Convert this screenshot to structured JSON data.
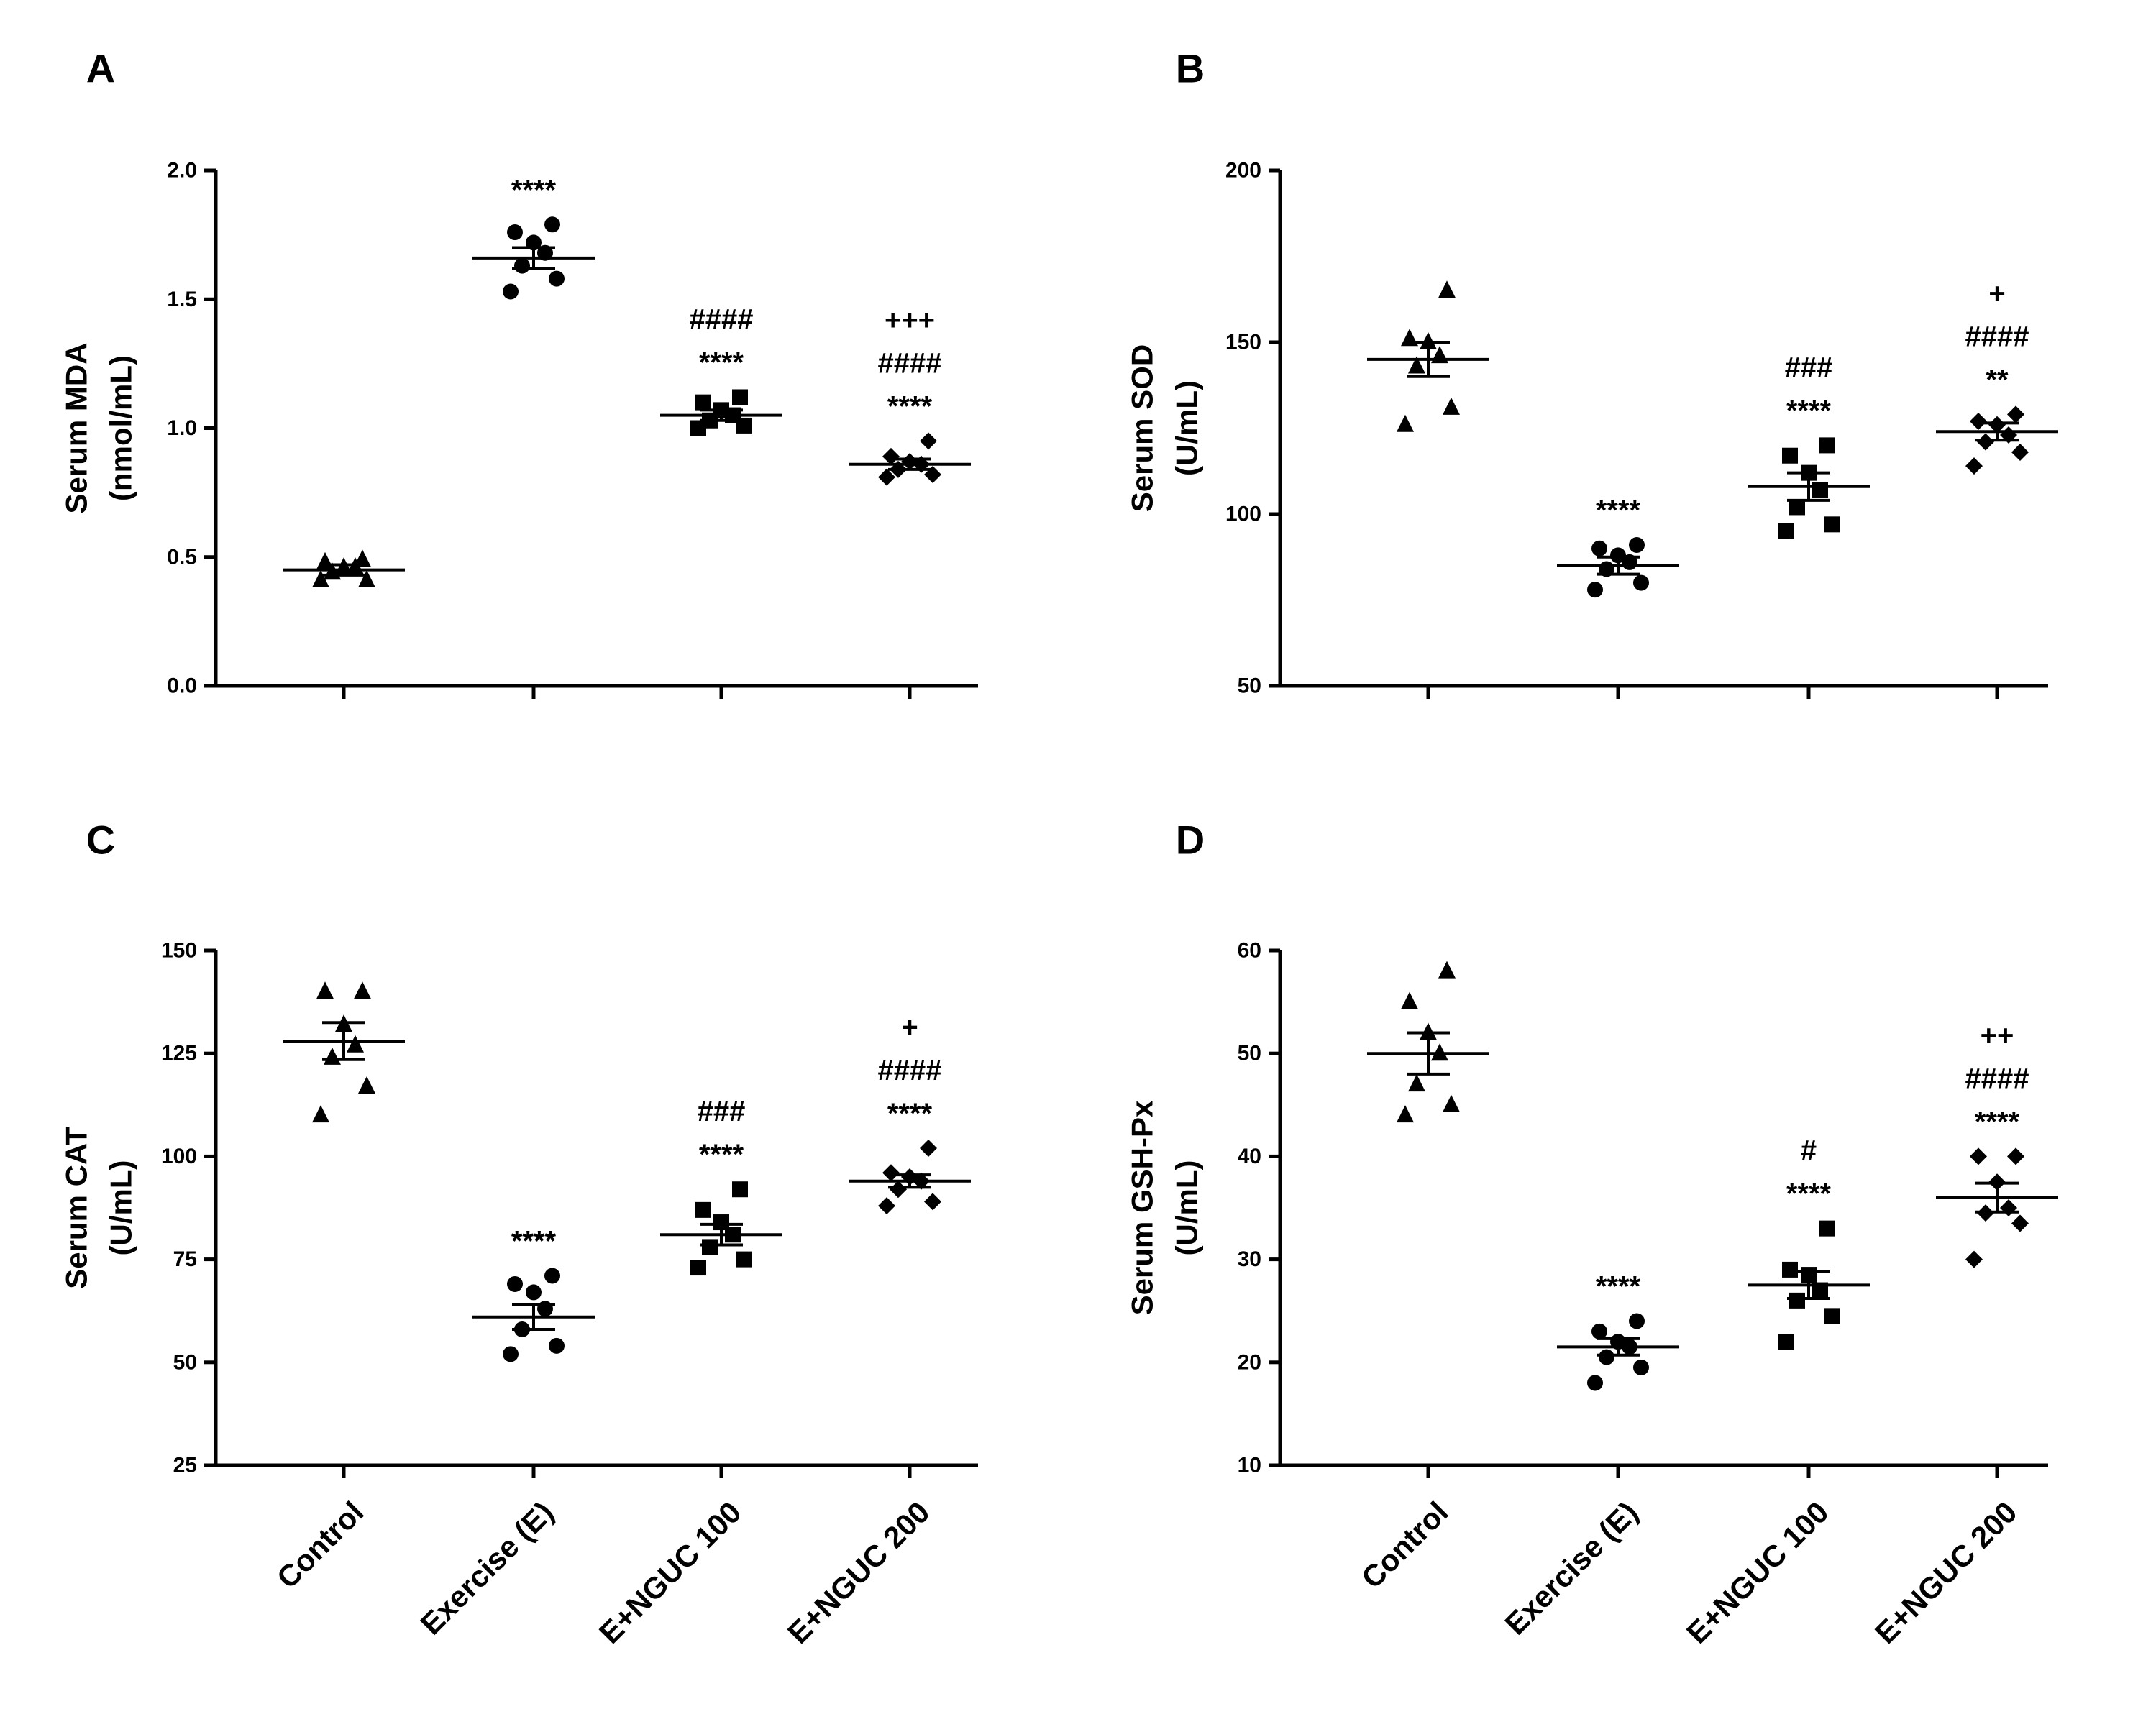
{
  "chart_data": [
    {
      "panel": "A",
      "type": "scatter",
      "ylabel": [
        "Serum MDA",
        "(nmol/mL)"
      ],
      "ylim": [
        0.0,
        2.0
      ],
      "yticks": [
        "0.0",
        "0.5",
        "1.0",
        "1.5",
        "2.0"
      ],
      "categories": [
        "Control",
        "Exercise (E)",
        "E+NGUC 100",
        "E+NGUC 200"
      ],
      "markers": [
        "triangle",
        "circle",
        "square",
        "diamond"
      ],
      "groups": [
        {
          "name": "Control",
          "mean": 0.45,
          "sem": 0.02,
          "points": [
            0.41,
            0.41,
            0.44,
            0.46,
            0.46,
            0.48,
            0.49
          ],
          "sig": []
        },
        {
          "name": "Exercise (E)",
          "mean": 1.66,
          "sem": 0.04,
          "points": [
            1.53,
            1.58,
            1.63,
            1.68,
            1.72,
            1.76,
            1.79
          ],
          "sig": [
            "****"
          ]
        },
        {
          "name": "E+NGUC 100",
          "mean": 1.05,
          "sem": 0.02,
          "points": [
            1.0,
            1.01,
            1.03,
            1.05,
            1.07,
            1.1,
            1.12
          ],
          "sig": [
            "####",
            "****"
          ]
        },
        {
          "name": "E+NGUC 200",
          "mean": 0.86,
          "sem": 0.02,
          "points": [
            0.81,
            0.82,
            0.84,
            0.86,
            0.87,
            0.89,
            0.95
          ],
          "sig": [
            "+++",
            "####",
            "****"
          ]
        }
      ]
    },
    {
      "panel": "B",
      "type": "scatter",
      "ylabel": [
        "Serum SOD",
        "(U/mL)"
      ],
      "ylim": [
        50,
        200
      ],
      "yticks": [
        "50",
        "100",
        "150",
        "200"
      ],
      "categories": [
        "Control",
        "Exercise (E)",
        "E+NGUC 100",
        "E+NGUC 200"
      ],
      "markers": [
        "triangle",
        "circle",
        "square",
        "diamond"
      ],
      "groups": [
        {
          "name": "Control",
          "mean": 145,
          "sem": 5,
          "points": [
            126,
            131,
            143,
            146,
            150,
            151,
            165
          ],
          "sig": []
        },
        {
          "name": "Exercise (E)",
          "mean": 85,
          "sem": 2.5,
          "points": [
            78,
            80,
            84,
            86,
            88,
            90,
            91
          ],
          "sig": [
            "****"
          ]
        },
        {
          "name": "E+NGUC 100",
          "mean": 108,
          "sem": 4,
          "points": [
            95,
            97,
            102,
            107,
            112,
            117,
            120
          ],
          "sig": [
            "###",
            "****"
          ]
        },
        {
          "name": "E+NGUC 200",
          "mean": 124,
          "sem": 2.5,
          "points": [
            114,
            118,
            121,
            123,
            126,
            127,
            129
          ],
          "sig": [
            "+",
            "####",
            "**"
          ]
        }
      ]
    },
    {
      "panel": "C",
      "type": "scatter",
      "ylabel": [
        "Serum CAT",
        "(U/mL)"
      ],
      "ylim": [
        25,
        150
      ],
      "yticks": [
        "25",
        "50",
        "75",
        "100",
        "125",
        "150"
      ],
      "categories": [
        "Control",
        "Exercise (E)",
        "E+NGUC 100",
        "E+NGUC 200"
      ],
      "markers": [
        "triangle",
        "circle",
        "square",
        "diamond"
      ],
      "groups": [
        {
          "name": "Control",
          "mean": 128,
          "sem": 4.5,
          "points": [
            110,
            117,
            124,
            127,
            132,
            140,
            140
          ],
          "sig": []
        },
        {
          "name": "Exercise (E)",
          "mean": 61,
          "sem": 3,
          "points": [
            52,
            54,
            58,
            63,
            67,
            69,
            71
          ],
          "sig": [
            "****"
          ]
        },
        {
          "name": "E+NGUC 100",
          "mean": 81,
          "sem": 2.5,
          "points": [
            73,
            75,
            78,
            81,
            84,
            87,
            92
          ],
          "sig": [
            "###",
            "****"
          ]
        },
        {
          "name": "E+NGUC 200",
          "mean": 94,
          "sem": 1.5,
          "points": [
            88,
            89,
            92,
            94,
            95,
            96,
            102
          ],
          "sig": [
            "+",
            "####",
            "****"
          ]
        }
      ]
    },
    {
      "panel": "D",
      "type": "scatter",
      "ylabel": [
        "Serum GSH-Px",
        "(U/mL)"
      ],
      "ylim": [
        10,
        60
      ],
      "yticks": [
        "10",
        "20",
        "30",
        "40",
        "50",
        "60"
      ],
      "categories": [
        "Control",
        "Exercise (E)",
        "E+NGUC 100",
        "E+NGUC 200"
      ],
      "markers": [
        "triangle",
        "circle",
        "square",
        "diamond"
      ],
      "groups": [
        {
          "name": "Control",
          "mean": 50,
          "sem": 2,
          "points": [
            44,
            45,
            47,
            50,
            52,
            55,
            58
          ],
          "sig": []
        },
        {
          "name": "Exercise (E)",
          "mean": 21.5,
          "sem": 0.8,
          "points": [
            18,
            19.5,
            20.5,
            21.5,
            22,
            23,
            24
          ],
          "sig": [
            "****"
          ]
        },
        {
          "name": "E+NGUC 100",
          "mean": 27.5,
          "sem": 1.3,
          "points": [
            22,
            24.5,
            26,
            27,
            28.5,
            29,
            33
          ],
          "sig": [
            "#",
            "****"
          ]
        },
        {
          "name": "E+NGUC 200",
          "mean": 36,
          "sem": 1.4,
          "points": [
            30,
            33.5,
            34.5,
            35,
            37.5,
            40,
            40
          ],
          "sig": [
            "++",
            "####",
            "****"
          ]
        }
      ]
    }
  ]
}
